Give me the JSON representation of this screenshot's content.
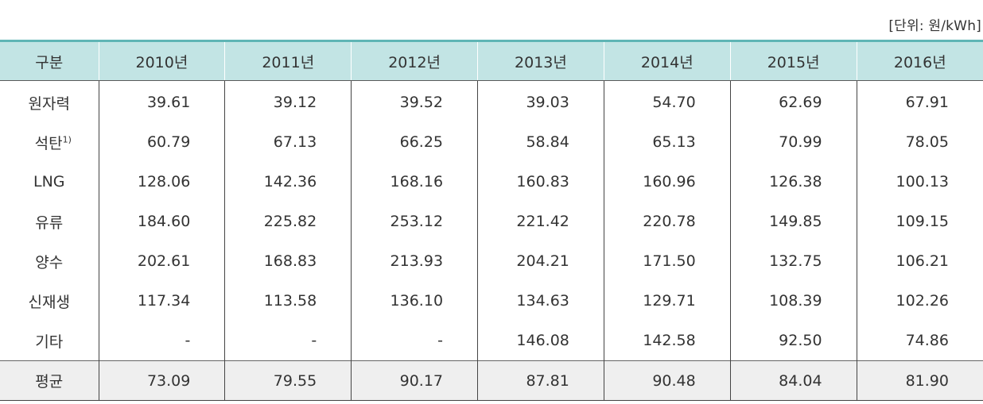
{
  "unit_label": "[단위: 원/kWh]",
  "header": [
    "구분",
    "2010년",
    "2011년",
    "2012년",
    "2013년",
    "2014년",
    "2015년",
    "2016년"
  ],
  "rows": [
    {
      "label": "원자력",
      "sup": "",
      "values": [
        "39.61",
        "39.12",
        "39.52",
        "39.03",
        "54.70",
        "62.69",
        "67.91"
      ]
    },
    {
      "label": "석탄",
      "sup": "1)",
      "values": [
        "60.79",
        "67.13",
        "66.25",
        "58.84",
        "65.13",
        "70.99",
        "78.05"
      ]
    },
    {
      "label": "LNG",
      "sup": "",
      "values": [
        "128.06",
        "142.36",
        "168.16",
        "160.83",
        "160.96",
        "126.38",
        "100.13"
      ]
    },
    {
      "label": "유류",
      "sup": "",
      "values": [
        "184.60",
        "225.82",
        "253.12",
        "221.42",
        "220.78",
        "149.85",
        "109.15"
      ]
    },
    {
      "label": "양수",
      "sup": "",
      "values": [
        "202.61",
        "168.83",
        "213.93",
        "204.21",
        "171.50",
        "132.75",
        "106.21"
      ]
    },
    {
      "label": "신재생",
      "sup": "",
      "values": [
        "117.34",
        "113.58",
        "136.10",
        "134.63",
        "129.71",
        "108.39",
        "102.26"
      ]
    },
    {
      "label": "기타",
      "sup": "",
      "values": [
        "-",
        "-",
        "-",
        "146.08",
        "142.58",
        "92.50",
        "74.86"
      ]
    }
  ],
  "average": {
    "label": "평균",
    "values": [
      "73.09",
      "79.55",
      "90.17",
      "87.81",
      "90.48",
      "84.04",
      "81.90"
    ]
  },
  "colors": {
    "header_bg": "#c2e4e4",
    "header_top_border": "#5fb5b5",
    "average_bg": "#efefef",
    "text": "#333333"
  }
}
